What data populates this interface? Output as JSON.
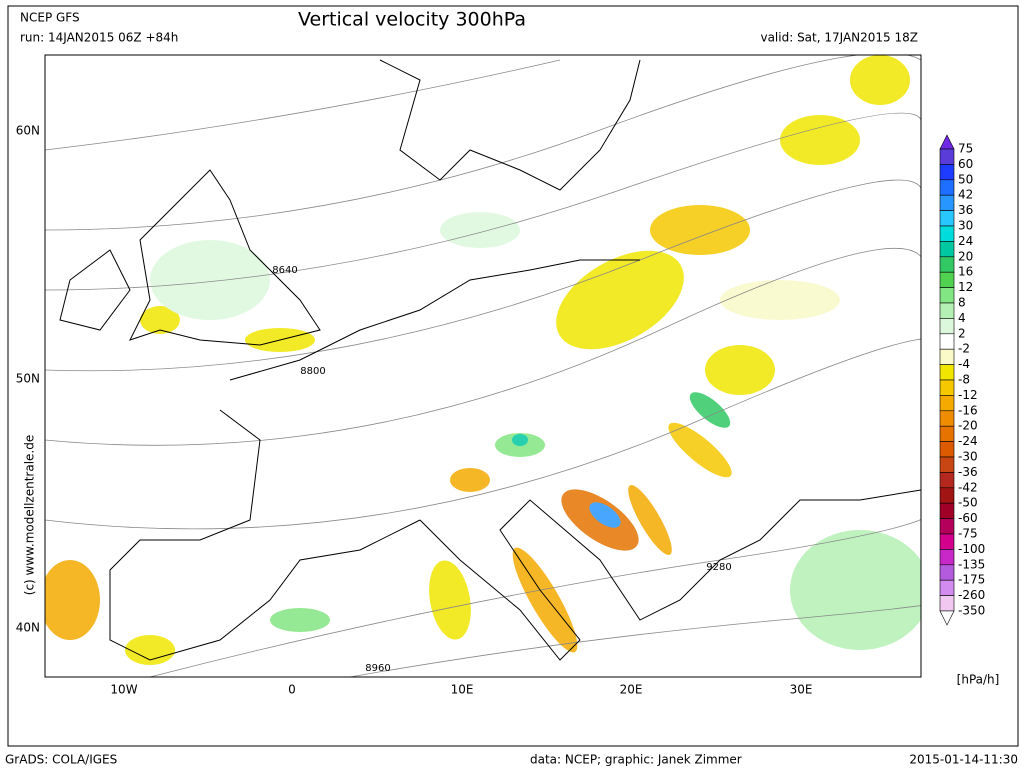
{
  "header": {
    "model": "NCEP GFS",
    "title": "Vertical velocity 300hPa",
    "run": "run: 14JAN2015 06Z +84h",
    "valid": "valid: Sat, 17JAN2015 18Z"
  },
  "map": {
    "lat_labels": [
      "60N",
      "50N",
      "40N"
    ],
    "lon_labels": [
      "10W",
      "0",
      "10E",
      "20E",
      "30E"
    ],
    "contour_labels": [
      "8640",
      "8800",
      "8960",
      "9280"
    ]
  },
  "legend": {
    "levels": [
      "75",
      "60",
      "50",
      "42",
      "36",
      "30",
      "24",
      "20",
      "16",
      "12",
      "8",
      "4",
      "2",
      "-2",
      "-4",
      "-8",
      "-12",
      "-16",
      "-20",
      "-24",
      "-30",
      "-36",
      "-42",
      "-50",
      "-60",
      "-75",
      "-100",
      "-135",
      "-175",
      "-260",
      "-350"
    ],
    "colors": [
      "#6e28e6",
      "#5a3cd8",
      "#1e3cff",
      "#1e6eff",
      "#2896ff",
      "#28c8ff",
      "#00dcdc",
      "#00c8a0",
      "#32c864",
      "#50d250",
      "#82e682",
      "#b4f0b4",
      "#dcf8dc",
      "#ffffff",
      "#fafac8",
      "#f0e600",
      "#f5c800",
      "#f5aa00",
      "#f08c00",
      "#e67300",
      "#dc5a00",
      "#c84614",
      "#b4281e",
      "#a01414",
      "#a00028",
      "#b4005a",
      "#d2008c",
      "#c828c8",
      "#b45adc",
      "#d28cf0",
      "#f0c8f0",
      "#ffffff"
    ],
    "unit": "[hPa/h]"
  },
  "footer": {
    "software": "GrADS: COLA/IGES",
    "credit": "data: NCEP; graphic: Janek Zimmer",
    "timestamp": "2015-01-14-11:30"
  },
  "side_credit": "(c) www.modellzentrale.de"
}
